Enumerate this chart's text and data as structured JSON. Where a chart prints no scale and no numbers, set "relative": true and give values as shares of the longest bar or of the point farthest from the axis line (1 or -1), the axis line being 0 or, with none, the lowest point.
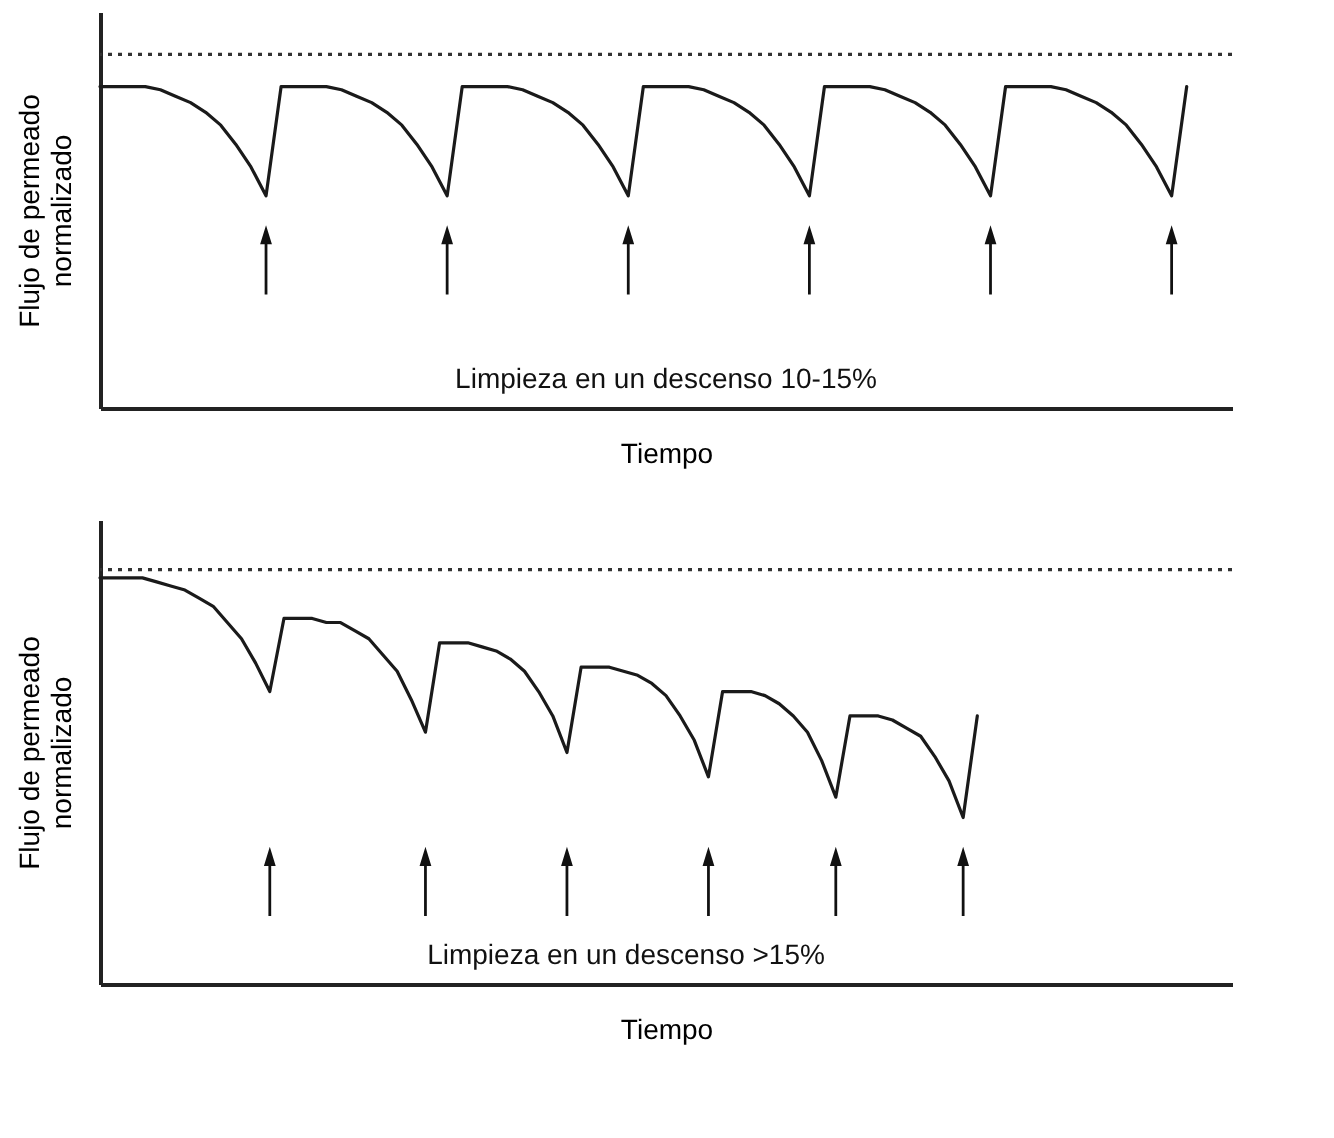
{
  "chart_data": [
    {
      "type": "line",
      "relative": true,
      "xlabel": "Tiempo",
      "ylabel": "Flujo de permeado normalizado",
      "annotations": [
        "Limpieza en un descenso 10-15%"
      ],
      "categories": [
        null,
        null,
        null,
        null,
        null,
        null,
        null,
        null,
        null,
        null,
        null,
        null,
        null,
        null,
        null,
        null,
        null,
        null,
        null,
        null,
        null,
        null,
        null,
        null,
        null,
        null,
        null,
        null,
        null,
        null,
        null,
        null,
        null,
        null,
        null,
        null,
        null,
        null,
        null,
        null,
        null,
        null,
        null,
        null,
        null,
        null,
        null,
        null,
        null,
        null,
        null,
        null,
        null,
        null,
        null,
        null,
        null,
        null,
        null,
        null,
        null,
        null,
        null,
        null,
        null,
        null,
        null,
        null,
        null,
        null,
        null,
        null,
        null,
        null,
        null,
        null
      ],
      "series": [
        {
          "color": "#1a1a1a",
          "values": [
            1.0,
            1.0,
            1.0,
            1.0,
            0.99,
            0.97,
            0.95,
            0.92,
            0.88,
            0.82,
            0.75,
            0.66,
            1.0,
            1.0,
            1.0,
            1.0,
            0.99,
            0.97,
            0.95,
            0.92,
            0.88,
            0.82,
            0.75,
            0.66,
            1.0,
            1.0,
            1.0,
            1.0,
            0.99,
            0.97,
            0.95,
            0.92,
            0.88,
            0.82,
            0.75,
            0.66,
            1.0,
            1.0,
            1.0,
            1.0,
            0.99,
            0.97,
            0.95,
            0.92,
            0.88,
            0.82,
            0.75,
            0.66,
            1.0,
            1.0,
            1.0,
            1.0,
            0.99,
            0.97,
            0.95,
            0.92,
            0.88,
            0.82,
            0.75,
            0.66,
            1.0,
            1.0,
            1.0,
            1.0,
            0.99,
            0.97,
            0.95,
            0.92,
            0.88,
            0.82,
            0.75,
            0.66,
            1.0,
            null,
            null,
            null
          ]
        }
      ],
      "ref_lines": [
        {
          "axis": "y",
          "value": 1.1,
          "color": "#333333",
          "line_style": "dotted"
        }
      ]
    },
    {
      "type": "line",
      "relative": true,
      "xlabel": "Tiempo",
      "ylabel": "Flujo de permeado normalizado",
      "annotations": [
        "Limpieza en un descenso >15%"
      ],
      "categories": [
        null,
        null,
        null,
        null,
        null,
        null,
        null,
        null,
        null,
        null,
        null,
        null,
        null,
        null,
        null,
        null,
        null,
        null,
        null,
        null,
        null,
        null,
        null,
        null,
        null,
        null,
        null,
        null,
        null,
        null,
        null,
        null,
        null,
        null,
        null,
        null,
        null,
        null,
        null,
        null,
        null,
        null,
        null,
        null,
        null,
        null,
        null,
        null,
        null,
        null,
        null,
        null,
        null,
        null,
        null,
        null,
        null,
        null,
        null,
        null,
        null,
        null,
        null,
        null,
        null,
        null,
        null,
        null,
        null,
        null,
        null,
        null,
        null,
        null,
        null,
        null,
        null,
        null,
        null,
        null,
        null
      ],
      "series": [
        {
          "color": "#1a1a1a",
          "values": [
            1.0,
            1.0,
            1.0,
            1.0,
            0.99,
            0.98,
            0.97,
            0.95,
            0.93,
            0.89,
            0.85,
            0.79,
            0.72,
            0.9,
            0.9,
            0.9,
            0.89,
            0.89,
            0.87,
            0.85,
            0.81,
            0.77,
            0.7,
            0.62,
            0.84,
            0.84,
            0.84,
            0.83,
            0.82,
            0.8,
            0.77,
            0.72,
            0.66,
            0.57,
            0.78,
            0.78,
            0.78,
            0.77,
            0.76,
            0.74,
            0.71,
            0.66,
            0.6,
            0.51,
            0.72,
            0.72,
            0.72,
            0.71,
            0.69,
            0.66,
            0.62,
            0.55,
            0.46,
            0.66,
            0.66,
            0.66,
            0.65,
            0.63,
            0.61,
            0.56,
            0.5,
            0.41,
            0.66,
            null,
            null,
            null,
            null,
            null,
            null,
            null,
            null,
            null,
            null,
            null,
            null,
            null,
            null,
            null,
            null,
            null,
            null
          ]
        }
      ],
      "ref_lines": [
        {
          "axis": "y",
          "value": 1.02,
          "color": "#333333",
          "line_style": "dotted"
        }
      ]
    }
  ]
}
